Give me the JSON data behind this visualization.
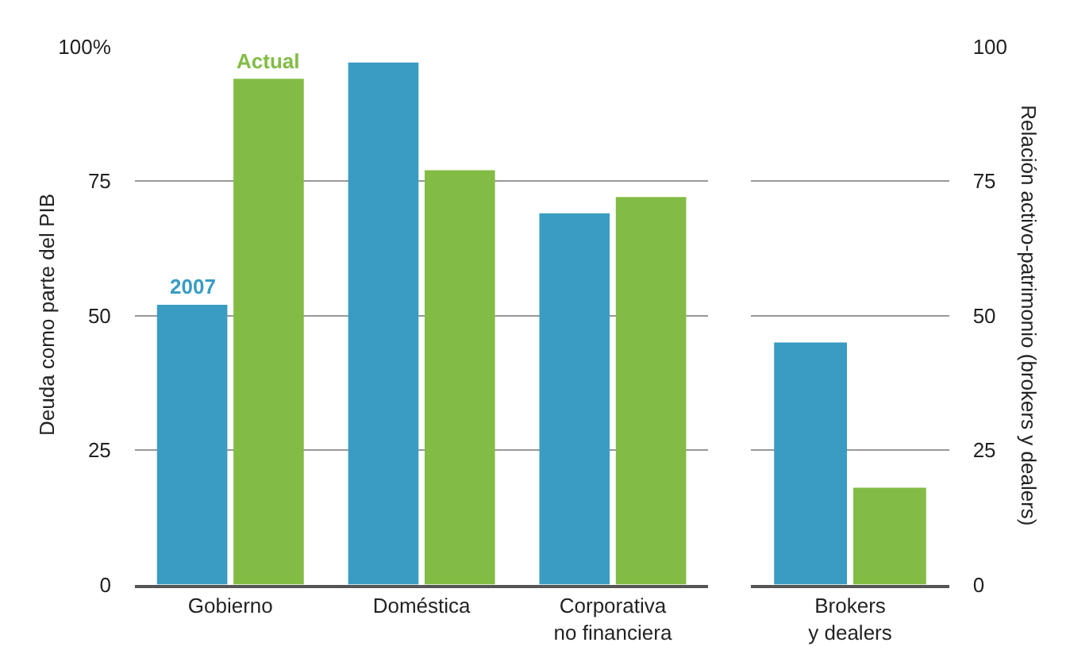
{
  "chart_data": [
    {
      "type": "bar",
      "ylabel": "Deuda como parte del PIB",
      "categories": [
        "Gobierno",
        "Doméstica",
        "Corporativa\nno financiera"
      ],
      "series": [
        {
          "name": "2007",
          "color": "#3a9cc2",
          "values": [
            52,
            97,
            69
          ]
        },
        {
          "name": "Actual",
          "color": "#82bc45",
          "values": [
            94,
            77,
            72
          ]
        }
      ],
      "ylim": [
        0,
        100
      ],
      "yticks": [
        0,
        25,
        50,
        {
          "value": 100,
          "label": "100%"
        },
        75
      ],
      "grid": "y",
      "legend": false
    },
    {
      "type": "bar",
      "ylabel": "Relación activo-patrimonio (brokers y dealers)",
      "categories": [
        "Brokers\ny dealers"
      ],
      "series": [
        {
          "color": "#3a9cc2",
          "values": [
            45
          ]
        },
        {
          "color": "#82bc45",
          "values": [
            18
          ]
        }
      ],
      "ylim": [
        0,
        100
      ],
      "yticks": [
        0,
        25,
        50,
        75,
        100
      ],
      "grid": "y",
      "legend": false
    }
  ]
}
